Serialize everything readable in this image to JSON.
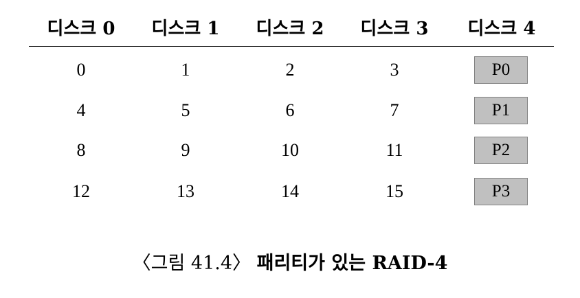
{
  "table": {
    "headers": [
      "디스크 0",
      "디스크 1",
      "디스크 2",
      "디스크 3",
      "디스크 4"
    ],
    "rows": [
      {
        "blocks": [
          "0",
          "1",
          "2",
          "3"
        ],
        "parity": "P0"
      },
      {
        "blocks": [
          "4",
          "5",
          "6",
          "7"
        ],
        "parity": "P1"
      },
      {
        "blocks": [
          "8",
          "9",
          "10",
          "11"
        ],
        "parity": "P2"
      },
      {
        "blocks": [
          "12",
          "13",
          "14",
          "15"
        ],
        "parity": "P3"
      }
    ]
  },
  "caption": {
    "label": "〈그림 41.4〉",
    "title": "패리티가 있는 RAID-4"
  },
  "colors": {
    "parity_fill": "#c0c0c0",
    "parity_border": "#808080"
  }
}
